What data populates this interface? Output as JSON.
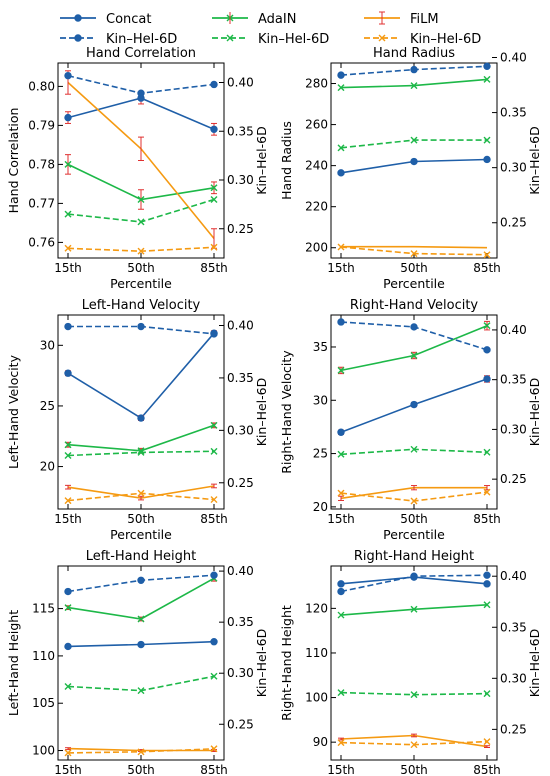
{
  "legend": {
    "entries": [
      {
        "label": "Concat",
        "color": "#1f5fa8",
        "style": "solid",
        "marker": "circle"
      },
      {
        "label": "AdaIN",
        "color": "#1db848",
        "style": "solid",
        "marker": "x"
      },
      {
        "label": "FiLM",
        "color": "#f59a12",
        "style": "solid",
        "marker": "none"
      },
      {
        "label": "Kin–Hel-6D",
        "color": "#1f5fa8",
        "style": "dashed",
        "marker": "circle"
      },
      {
        "label": "Kin–Hel-6D",
        "color": "#1db848",
        "style": "dashed",
        "marker": "x"
      },
      {
        "label": "Kin–Hel-6D",
        "color": "#f59a12",
        "style": "dashed",
        "marker": "x"
      }
    ]
  },
  "chart_data": [
    {
      "type": "line",
      "title": "Hand Correlation",
      "xlabel": "Percentile",
      "ylabel": "Hand Correlation",
      "ylabel_right": "Kin–Hel-6D",
      "categories": [
        "15th",
        "50th",
        "85th"
      ],
      "ylim": [
        0.756,
        0.806
      ],
      "yticks": [
        0.76,
        0.77,
        0.78,
        0.79,
        0.8
      ],
      "ytick_labels": [
        "0.76",
        "0.77",
        "0.78",
        "0.79",
        "0.80"
      ],
      "ylim_right": [
        0.22,
        0.42
      ],
      "yticks_right": [
        0.25,
        0.3,
        0.35,
        0.4
      ],
      "ytick_labels_right": [
        "0.25",
        "0.30",
        "0.35",
        "0.40"
      ],
      "series": [
        {
          "name": "Concat",
          "values": [
            0.792,
            0.797,
            0.789
          ],
          "err": [
            0.0015,
            0.0015,
            0.0015
          ],
          "color": "#1f5fa8",
          "marker": "circle",
          "style": "solid",
          "axis": "left"
        },
        {
          "name": "AdaIN",
          "values": [
            0.78,
            0.771,
            0.774
          ],
          "err": [
            0.0025,
            0.0025,
            0.0015
          ],
          "color": "#1db848",
          "marker": "x",
          "style": "solid",
          "axis": "left"
        },
        {
          "name": "FiLM",
          "values": [
            0.801,
            0.784,
            0.761
          ],
          "err": [
            0.003,
            0.003,
            0.0025
          ],
          "color": "#f59a12",
          "marker": "none",
          "style": "solid",
          "axis": "left"
        },
        {
          "name": "Kin–Hel-6D",
          "values": [
            0.407,
            0.389,
            0.398
          ],
          "color": "#1f5fa8",
          "marker": "circle",
          "style": "dashed",
          "axis": "right"
        },
        {
          "name": "Kin–Hel-6D",
          "values": [
            0.265,
            0.257,
            0.28
          ],
          "color": "#1db848",
          "marker": "x",
          "style": "dashed",
          "axis": "right"
        },
        {
          "name": "Kin–Hel-6D",
          "values": [
            0.23,
            0.227,
            0.231
          ],
          "color": "#f59a12",
          "marker": "x",
          "style": "dashed",
          "axis": "right"
        }
      ]
    },
    {
      "type": "line",
      "title": "Hand Radius",
      "xlabel": "Percentile",
      "ylabel": "Hand Radius",
      "ylabel_right": "Kin–Hel-6D",
      "categories": [
        "15th",
        "50th",
        "85th"
      ],
      "ylim": [
        195,
        290
      ],
      "yticks": [
        200,
        220,
        240,
        260,
        280
      ],
      "ytick_labels": [
        "200",
        "220",
        "240",
        "260",
        "280"
      ],
      "ylim_right": [
        0.218,
        0.395
      ],
      "yticks_right": [
        0.25,
        0.3,
        0.35,
        0.4
      ],
      "ytick_labels_right": [
        "0.25",
        "0.30",
        "0.35",
        "0.40"
      ],
      "series": [
        {
          "name": "Concat",
          "values": [
            236.5,
            242,
            243
          ],
          "color": "#1f5fa8",
          "marker": "circle",
          "style": "solid",
          "axis": "left"
        },
        {
          "name": "AdaIN",
          "values": [
            278,
            279,
            282
          ],
          "color": "#1db848",
          "marker": "x",
          "style": "solid",
          "axis": "left"
        },
        {
          "name": "FiLM",
          "values": [
            200.5,
            200.5,
            200
          ],
          "color": "#f59a12",
          "marker": "none",
          "style": "solid",
          "axis": "left"
        },
        {
          "name": "Kin–Hel-6D",
          "values": [
            0.384,
            0.389,
            0.392
          ],
          "color": "#1f5fa8",
          "marker": "circle",
          "style": "dashed",
          "axis": "right"
        },
        {
          "name": "Kin–Hel-6D",
          "values": [
            0.318,
            0.325,
            0.325
          ],
          "color": "#1db848",
          "marker": "x",
          "style": "dashed",
          "axis": "right"
        },
        {
          "name": "Kin–Hel-6D",
          "values": [
            0.228,
            0.222,
            0.221
          ],
          "color": "#f59a12",
          "marker": "x",
          "style": "dashed",
          "axis": "right"
        }
      ]
    },
    {
      "type": "line",
      "title": "Left-Hand Velocity",
      "xlabel": "Percentile",
      "ylabel": "Left-Hand Velocity",
      "ylabel_right": "Kin–Hel-6D",
      "categories": [
        "15th",
        "50th",
        "85th"
      ],
      "ylim": [
        16.5,
        32.5
      ],
      "yticks": [
        20,
        25,
        30
      ],
      "ytick_labels": [
        "20",
        "25",
        "30"
      ],
      "ylim_right": [
        0.225,
        0.41
      ],
      "yticks_right": [
        0.25,
        0.3,
        0.35,
        0.4
      ],
      "ytick_labels_right": [
        "0.25",
        "0.30",
        "0.35",
        "0.40"
      ],
      "series": [
        {
          "name": "Concat",
          "values": [
            27.7,
            24.0,
            31.0
          ],
          "err": [
            0.2,
            0.2,
            0.2
          ],
          "color": "#1f5fa8",
          "marker": "circle",
          "style": "solid",
          "axis": "left"
        },
        {
          "name": "AdaIN",
          "values": [
            21.8,
            21.3,
            23.4
          ],
          "err": [
            0.2,
            0.2,
            0.2
          ],
          "color": "#1db848",
          "marker": "x",
          "style": "solid",
          "axis": "left"
        },
        {
          "name": "FiLM",
          "values": [
            18.3,
            17.4,
            18.4
          ],
          "err": [
            0.15,
            0.15,
            0.15
          ],
          "color": "#f59a12",
          "marker": "none",
          "style": "solid",
          "axis": "left"
        },
        {
          "name": "Kin–Hel-6D",
          "values": [
            0.399,
            0.399,
            0.392
          ],
          "color": "#1f5fa8",
          "marker": "circle",
          "style": "dashed",
          "axis": "right"
        },
        {
          "name": "Kin–Hel-6D",
          "values": [
            0.276,
            0.279,
            0.28
          ],
          "color": "#1db848",
          "marker": "x",
          "style": "dashed",
          "axis": "right"
        },
        {
          "name": "Kin–Hel-6D",
          "values": [
            0.233,
            0.24,
            0.234
          ],
          "color": "#f59a12",
          "marker": "x",
          "style": "dashed",
          "axis": "right"
        }
      ]
    },
    {
      "type": "line",
      "title": "Right-Hand Velocity",
      "xlabel": "Percentile",
      "ylabel": "Right-Hand Velocity",
      "ylabel_right": "Kin–Hel-6D",
      "categories": [
        "15th",
        "50th",
        "85th"
      ],
      "ylim": [
        19.8,
        38
      ],
      "yticks": [
        20,
        25,
        30,
        35
      ],
      "ytick_labels": [
        "20",
        "25",
        "30",
        "35"
      ],
      "ylim_right": [
        0.22,
        0.415
      ],
      "yticks_right": [
        0.25,
        0.3,
        0.35,
        0.4
      ],
      "ytick_labels_right": [
        "0.25",
        "0.30",
        "0.35",
        "0.40"
      ],
      "series": [
        {
          "name": "Concat",
          "values": [
            27.0,
            29.6,
            32.0
          ],
          "err": [
            0.2,
            0.2,
            0.3
          ],
          "color": "#1f5fa8",
          "marker": "circle",
          "style": "solid",
          "axis": "left"
        },
        {
          "name": "AdaIN",
          "values": [
            32.8,
            34.2,
            37.0
          ],
          "err": [
            0.3,
            0.3,
            0.4
          ],
          "color": "#1db848",
          "marker": "x",
          "style": "solid",
          "axis": "left"
        },
        {
          "name": "FiLM",
          "values": [
            20.8,
            21.8,
            21.8
          ],
          "err": [
            0.2,
            0.2,
            0.2
          ],
          "color": "#f59a12",
          "marker": "none",
          "style": "solid",
          "axis": "left"
        },
        {
          "name": "Kin–Hel-6D",
          "values": [
            0.408,
            0.403,
            0.38
          ],
          "color": "#1f5fa8",
          "marker": "circle",
          "style": "dashed",
          "axis": "right"
        },
        {
          "name": "Kin–Hel-6D",
          "values": [
            0.275,
            0.28,
            0.277
          ],
          "color": "#1db848",
          "marker": "x",
          "style": "dashed",
          "axis": "right"
        },
        {
          "name": "Kin–Hel-6D",
          "values": [
            0.236,
            0.228,
            0.237
          ],
          "color": "#f59a12",
          "marker": "x",
          "style": "dashed",
          "axis": "right"
        }
      ]
    },
    {
      "type": "line",
      "title": "Left-Hand Height",
      "xlabel": "",
      "ylabel": "Left-Hand Height",
      "ylabel_right": "Kin–Hel-6D",
      "categories": [
        "15th",
        "50th",
        "85th"
      ],
      "ylim": [
        99,
        119.5
      ],
      "yticks": [
        100,
        105,
        110,
        115
      ],
      "ytick_labels": [
        "100",
        "105",
        "110",
        "115"
      ],
      "ylim_right": [
        0.215,
        0.405
      ],
      "yticks_right": [
        0.25,
        0.3,
        0.35,
        0.4
      ],
      "ytick_labels_right": [
        "0.25",
        "0.30",
        "0.35",
        "0.40"
      ],
      "series": [
        {
          "name": "Concat",
          "values": [
            111.0,
            111.2,
            111.5
          ],
          "color": "#1f5fa8",
          "marker": "circle",
          "style": "solid",
          "axis": "left"
        },
        {
          "name": "AdaIN",
          "values": [
            115.1,
            113.9,
            118.2
          ],
          "err": [
            0.2,
            0.2,
            0.3
          ],
          "color": "#1db848",
          "marker": "x",
          "style": "solid",
          "axis": "left"
        },
        {
          "name": "FiLM",
          "values": [
            100.2,
            100.0,
            100.0
          ],
          "err": [
            0.1,
            0.1,
            0.1
          ],
          "color": "#f59a12",
          "marker": "none",
          "style": "solid",
          "axis": "left"
        },
        {
          "name": "Kin–Hel-6D",
          "values": [
            0.38,
            0.391,
            0.396
          ],
          "color": "#1f5fa8",
          "marker": "circle",
          "style": "dashed",
          "axis": "right"
        },
        {
          "name": "Kin–Hel-6D",
          "values": [
            0.287,
            0.283,
            0.297
          ],
          "color": "#1db848",
          "marker": "x",
          "style": "dashed",
          "axis": "right"
        },
        {
          "name": "Kin–Hel-6D",
          "values": [
            0.222,
            0.223,
            0.226
          ],
          "color": "#f59a12",
          "marker": "x",
          "style": "dashed",
          "axis": "right"
        }
      ]
    },
    {
      "type": "line",
      "title": "Right-Hand Height",
      "xlabel": "",
      "ylabel": "Right-Hand Height",
      "ylabel_right": "Kin–Hel-6D",
      "categories": [
        "15th",
        "50th",
        "85th"
      ],
      "ylim": [
        86,
        129.5
      ],
      "yticks": [
        90,
        100,
        110,
        120
      ],
      "ytick_labels": [
        "90",
        "100",
        "110",
        "120"
      ],
      "ylim_right": [
        0.22,
        0.41
      ],
      "yticks_right": [
        0.25,
        0.3,
        0.35,
        0.4
      ],
      "ytick_labels_right": [
        "0.25",
        "0.30",
        "0.35",
        "0.40"
      ],
      "series": [
        {
          "name": "Concat",
          "values": [
            125.5,
            127.0,
            125.5
          ],
          "color": "#1f5fa8",
          "marker": "circle",
          "style": "solid",
          "axis": "left"
        },
        {
          "name": "AdaIN",
          "values": [
            118.5,
            119.8,
            120.8
          ],
          "color": "#1db848",
          "marker": "x",
          "style": "solid",
          "axis": "left"
        },
        {
          "name": "FiLM",
          "values": [
            90.7,
            91.5,
            89.0
          ],
          "err": [
            0.2,
            0.3,
            0.2
          ],
          "color": "#f59a12",
          "marker": "none",
          "style": "solid",
          "axis": "left"
        },
        {
          "name": "Kin–Hel-6D",
          "values": [
            0.385,
            0.4,
            0.401
          ],
          "color": "#1f5fa8",
          "marker": "circle",
          "style": "dashed",
          "axis": "right"
        },
        {
          "name": "Kin–Hel-6D",
          "values": [
            0.286,
            0.284,
            0.285
          ],
          "color": "#1db848",
          "marker": "x",
          "style": "dashed",
          "axis": "right"
        },
        {
          "name": "Kin–Hel-6D",
          "values": [
            0.237,
            0.235,
            0.238
          ],
          "color": "#f59a12",
          "marker": "x",
          "style": "dashed",
          "axis": "right"
        }
      ]
    }
  ]
}
